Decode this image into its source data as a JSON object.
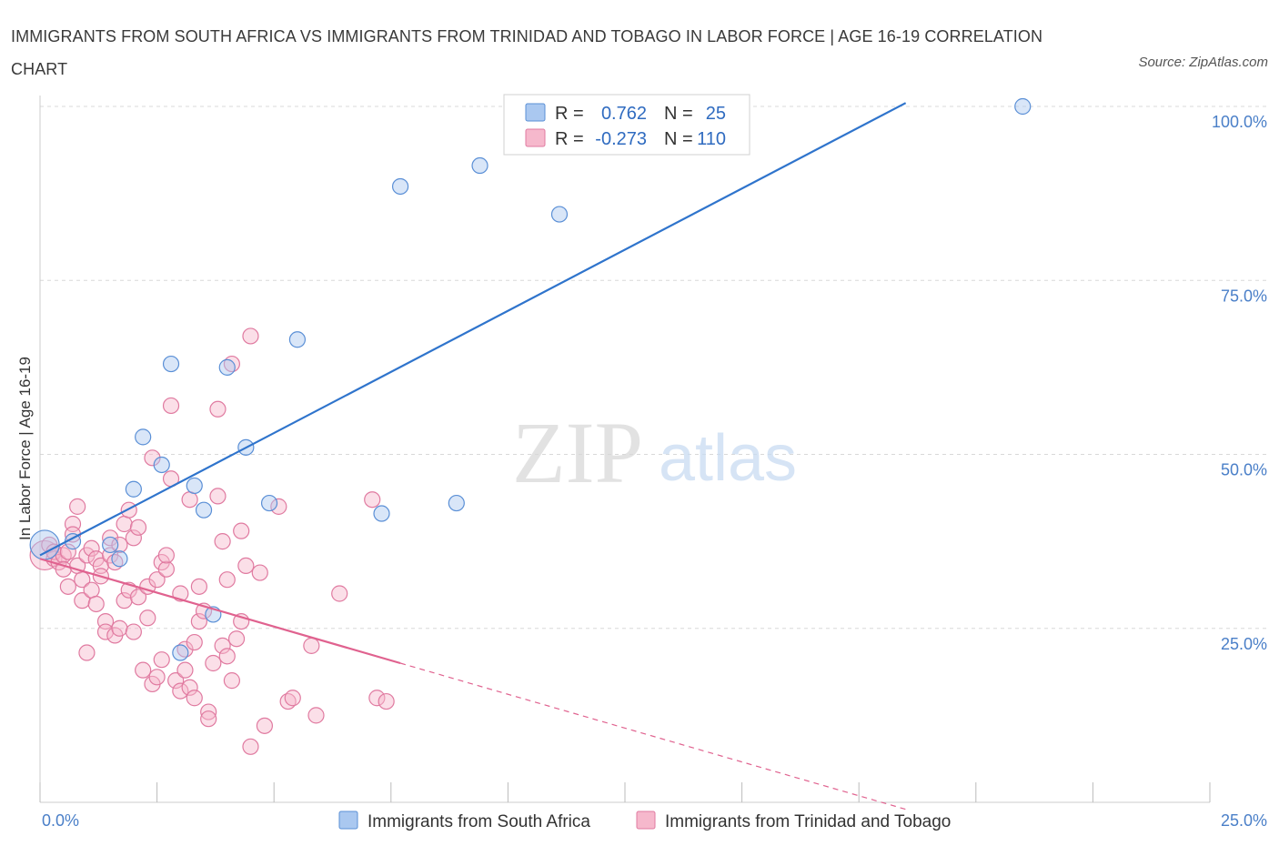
{
  "header": {
    "title": "IMMIGRANTS FROM SOUTH AFRICA VS IMMIGRANTS FROM TRINIDAD AND TOBAGO IN LABOR FORCE | AGE 16-19 CORRELATION CHART",
    "source": "Source: ZipAtlas.com"
  },
  "watermark": {
    "zip": "ZIP",
    "atlas": "atlas"
  },
  "colors": {
    "blue_fill": "#aac8f0",
    "blue_stroke": "#5a8fd6",
    "blue_line": "#2f74cc",
    "pink_fill": "#f6b8cc",
    "pink_stroke": "#e07aa0",
    "pink_line": "#e0628f",
    "grid": "#d8d8d8",
    "tick_text": "#4a7fc8"
  },
  "legend": {
    "rows": [
      {
        "r_label": "R =",
        "r_value": "0.762",
        "n_label": "N =",
        "n_value": "25"
      },
      {
        "r_label": "R =",
        "r_value": "-0.273",
        "n_label": "N =",
        "n_value": "110"
      }
    ]
  },
  "chart_data": {
    "type": "scatter",
    "xlabel": "",
    "ylabel": "In Labor Force | Age 16-19",
    "xlim": [
      0,
      25
    ],
    "ylim": [
      0,
      100
    ],
    "x_tick_labels": [
      "0.0%",
      "25.0%"
    ],
    "y_ticks": [
      25,
      50,
      75,
      100
    ],
    "y_tick_labels": [
      "25.0%",
      "50.0%",
      "75.0%",
      "100.0%"
    ],
    "grid": true,
    "legend_position": "top-center",
    "series": [
      {
        "name": "Immigrants from South Africa",
        "color": "blue",
        "trend": {
          "x": [
            0.0,
            18.5
          ],
          "y": [
            35.5,
            100.5
          ],
          "dashed_x": null
        },
        "points": [
          {
            "x": 0.1,
            "y": 37.0,
            "big": true
          },
          {
            "x": 0.7,
            "y": 37.5
          },
          {
            "x": 1.5,
            "y": 37.0
          },
          {
            "x": 1.7,
            "y": 35.0
          },
          {
            "x": 2.0,
            "y": 45.0
          },
          {
            "x": 2.2,
            "y": 52.5
          },
          {
            "x": 2.6,
            "y": 48.5
          },
          {
            "x": 2.8,
            "y": 63.0
          },
          {
            "x": 3.0,
            "y": 21.5
          },
          {
            "x": 3.3,
            "y": 45.5
          },
          {
            "x": 3.5,
            "y": 42.0
          },
          {
            "x": 3.7,
            "y": 27.0
          },
          {
            "x": 4.0,
            "y": 62.5
          },
          {
            "x": 4.4,
            "y": 51.0
          },
          {
            "x": 4.9,
            "y": 43.0
          },
          {
            "x": 5.5,
            "y": 66.5
          },
          {
            "x": 7.3,
            "y": 41.5
          },
          {
            "x": 7.7,
            "y": 88.5
          },
          {
            "x": 8.9,
            "y": 43.0
          },
          {
            "x": 9.4,
            "y": 91.5
          },
          {
            "x": 11.1,
            "y": 84.5
          },
          {
            "x": 21.0,
            "y": 100.0
          }
        ]
      },
      {
        "name": "Immigrants from Trinidad and Tobago",
        "color": "pink",
        "trend": {
          "x": [
            0.0,
            7.7
          ],
          "y": [
            35.0,
            20.0
          ],
          "dashed_to_x": 18.5,
          "dashed_to_y": -1.0
        },
        "points": [
          {
            "x": 0.1,
            "y": 35.5,
            "big": true
          },
          {
            "x": 0.2,
            "y": 37.0
          },
          {
            "x": 0.3,
            "y": 35.0
          },
          {
            "x": 0.3,
            "y": 36.0
          },
          {
            "x": 0.4,
            "y": 34.5
          },
          {
            "x": 0.5,
            "y": 35.5
          },
          {
            "x": 0.5,
            "y": 33.5
          },
          {
            "x": 0.6,
            "y": 36.0
          },
          {
            "x": 0.6,
            "y": 31.0
          },
          {
            "x": 0.7,
            "y": 40.0
          },
          {
            "x": 0.7,
            "y": 38.5
          },
          {
            "x": 0.8,
            "y": 42.5
          },
          {
            "x": 0.8,
            "y": 34.0
          },
          {
            "x": 0.9,
            "y": 32.0
          },
          {
            "x": 0.9,
            "y": 29.0
          },
          {
            "x": 1.0,
            "y": 35.5
          },
          {
            "x": 1.0,
            "y": 21.5
          },
          {
            "x": 1.1,
            "y": 30.5
          },
          {
            "x": 1.1,
            "y": 36.5
          },
          {
            "x": 1.2,
            "y": 35.0
          },
          {
            "x": 1.2,
            "y": 28.5
          },
          {
            "x": 1.3,
            "y": 34.0
          },
          {
            "x": 1.3,
            "y": 32.5
          },
          {
            "x": 1.4,
            "y": 26.0
          },
          {
            "x": 1.4,
            "y": 24.5
          },
          {
            "x": 1.5,
            "y": 35.5
          },
          {
            "x": 1.5,
            "y": 38.0
          },
          {
            "x": 1.6,
            "y": 34.5
          },
          {
            "x": 1.6,
            "y": 24.0
          },
          {
            "x": 1.7,
            "y": 37.0
          },
          {
            "x": 1.7,
            "y": 25.0
          },
          {
            "x": 1.8,
            "y": 40.0
          },
          {
            "x": 1.8,
            "y": 29.0
          },
          {
            "x": 1.9,
            "y": 42.0
          },
          {
            "x": 1.9,
            "y": 30.5
          },
          {
            "x": 2.0,
            "y": 38.0
          },
          {
            "x": 2.0,
            "y": 24.5
          },
          {
            "x": 2.1,
            "y": 39.5
          },
          {
            "x": 2.1,
            "y": 29.5
          },
          {
            "x": 2.2,
            "y": 19.0
          },
          {
            "x": 2.3,
            "y": 26.5
          },
          {
            "x": 2.3,
            "y": 31.0
          },
          {
            "x": 2.4,
            "y": 49.5
          },
          {
            "x": 2.4,
            "y": 17.0
          },
          {
            "x": 2.5,
            "y": 32.0
          },
          {
            "x": 2.5,
            "y": 18.0
          },
          {
            "x": 2.6,
            "y": 34.5
          },
          {
            "x": 2.6,
            "y": 20.5
          },
          {
            "x": 2.7,
            "y": 33.5
          },
          {
            "x": 2.7,
            "y": 35.5
          },
          {
            "x": 2.8,
            "y": 57.0
          },
          {
            "x": 2.8,
            "y": 46.5
          },
          {
            "x": 2.9,
            "y": 17.5
          },
          {
            "x": 3.0,
            "y": 30.0
          },
          {
            "x": 3.0,
            "y": 16.0
          },
          {
            "x": 3.1,
            "y": 22.0
          },
          {
            "x": 3.1,
            "y": 19.0
          },
          {
            "x": 3.2,
            "y": 43.5
          },
          {
            "x": 3.2,
            "y": 16.5
          },
          {
            "x": 3.3,
            "y": 23.0
          },
          {
            "x": 3.3,
            "y": 15.0
          },
          {
            "x": 3.4,
            "y": 31.0
          },
          {
            "x": 3.4,
            "y": 26.0
          },
          {
            "x": 3.5,
            "y": 27.5
          },
          {
            "x": 3.6,
            "y": 13.0
          },
          {
            "x": 3.6,
            "y": 12.0
          },
          {
            "x": 3.7,
            "y": 20.0
          },
          {
            "x": 3.8,
            "y": 56.5
          },
          {
            "x": 3.8,
            "y": 44.0
          },
          {
            "x": 3.9,
            "y": 37.5
          },
          {
            "x": 3.9,
            "y": 22.5
          },
          {
            "x": 4.0,
            "y": 32.0
          },
          {
            "x": 4.0,
            "y": 21.0
          },
          {
            "x": 4.1,
            "y": 63.0
          },
          {
            "x": 4.1,
            "y": 17.5
          },
          {
            "x": 4.2,
            "y": 23.5
          },
          {
            "x": 4.3,
            "y": 39.0
          },
          {
            "x": 4.3,
            "y": 26.0
          },
          {
            "x": 4.4,
            "y": 34.0
          },
          {
            "x": 4.5,
            "y": 67.0
          },
          {
            "x": 4.5,
            "y": 8.0
          },
          {
            "x": 4.7,
            "y": 33.0
          },
          {
            "x": 4.8,
            "y": 11.0
          },
          {
            "x": 5.1,
            "y": 42.5
          },
          {
            "x": 5.3,
            "y": 14.5
          },
          {
            "x": 5.4,
            "y": 15.0
          },
          {
            "x": 5.8,
            "y": 22.5
          },
          {
            "x": 5.9,
            "y": 12.5
          },
          {
            "x": 6.4,
            "y": 30.0
          },
          {
            "x": 7.1,
            "y": 43.5
          },
          {
            "x": 7.2,
            "y": 15.0
          },
          {
            "x": 7.4,
            "y": 14.5
          }
        ]
      }
    ]
  },
  "bottom_legend": {
    "items": [
      {
        "label": "Immigrants from South Africa"
      },
      {
        "label": "Immigrants from Trinidad and Tobago"
      }
    ]
  }
}
